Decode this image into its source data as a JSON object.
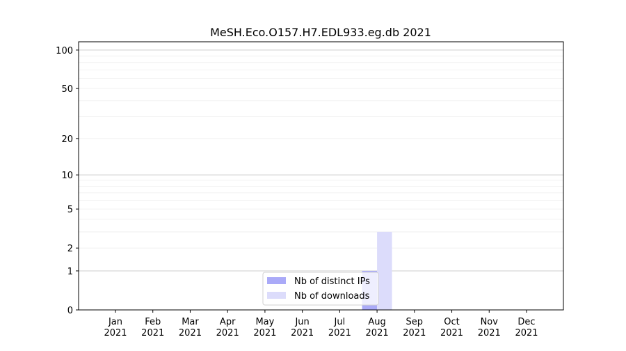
{
  "chart_data": {
    "type": "bar",
    "title": "MeSH.Eco.O157.H7.EDL933.eg.db 2021",
    "xlabel": "",
    "ylabel": "",
    "y_scale": "log(1+y)",
    "ylim": [
      0,
      116
    ],
    "yticks": [
      0,
      1,
      2,
      5,
      10,
      20,
      50,
      100
    ],
    "grid": "horizontal major and minor",
    "legend_position": "bottom-center",
    "categories": [
      "Jan\n2021",
      "Feb\n2021",
      "Mar\n2021",
      "Apr\n2021",
      "May\n2021",
      "Jun\n2021",
      "Jul\n2021",
      "Aug\n2021",
      "Sep\n2021",
      "Oct\n2021",
      "Nov\n2021",
      "Dec\n2021"
    ],
    "series": [
      {
        "name": "Nb of distinct IPs",
        "color": "#aaaaf8",
        "values": [
          0,
          0,
          0,
          0,
          0,
          0,
          0,
          1,
          0,
          0,
          0,
          0
        ]
      },
      {
        "name": "Nb of downloads",
        "color": "#dcdcfb",
        "values": [
          0,
          0,
          0,
          0,
          0,
          0,
          0,
          3,
          0,
          0,
          0,
          0
        ]
      }
    ]
  }
}
